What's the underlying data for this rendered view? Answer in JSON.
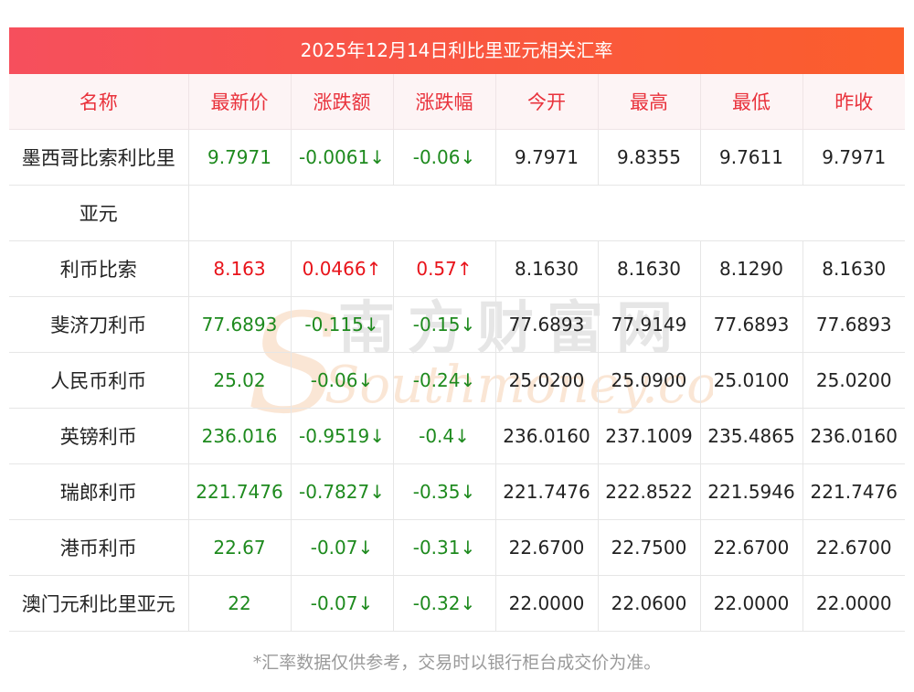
{
  "title": "2025年12月14日利比里亚元相关汇率",
  "headers": [
    "名称",
    "最新价",
    "涨跌额",
    "涨跌幅",
    "今开",
    "最高",
    "最低",
    "昨收"
  ],
  "rows": [
    {
      "name": "墨西哥比索利比里",
      "name_cont": "亚元",
      "latest": "9.7971",
      "change": "-0.0061↓",
      "pct": "-0.06↓",
      "open": "9.7971",
      "high": "9.8355",
      "low": "9.7611",
      "prev": "9.7971",
      "dir": "down"
    },
    {
      "name": "利币比索",
      "latest": "8.163",
      "change": "0.0466↑",
      "pct": "0.57↑",
      "open": "8.1630",
      "high": "8.1630",
      "low": "8.1290",
      "prev": "8.1630",
      "dir": "up"
    },
    {
      "name": "斐济刀利币",
      "latest": "77.6893",
      "change": "-0.115↓",
      "pct": "-0.15↓",
      "open": "77.6893",
      "high": "77.9149",
      "low": "77.6893",
      "prev": "77.6893",
      "dir": "down"
    },
    {
      "name": "人民币利币",
      "latest": "25.02",
      "change": "-0.06↓",
      "pct": "-0.24↓",
      "open": "25.0200",
      "high": "25.0900",
      "low": "25.0100",
      "prev": "25.0200",
      "dir": "down"
    },
    {
      "name": "英镑利币",
      "latest": "236.016",
      "change": "-0.9519↓",
      "pct": "-0.4↓",
      "open": "236.0160",
      "high": "237.1009",
      "low": "235.4865",
      "prev": "236.0160",
      "dir": "down"
    },
    {
      "name": "瑞郎利币",
      "latest": "221.7476",
      "change": "-0.7827↓",
      "pct": "-0.35↓",
      "open": "221.7476",
      "high": "222.8522",
      "low": "221.5946",
      "prev": "221.7476",
      "dir": "down"
    },
    {
      "name": "港币利币",
      "latest": "22.67",
      "change": "-0.07↓",
      "pct": "-0.31↓",
      "open": "22.6700",
      "high": "22.7500",
      "low": "22.6700",
      "prev": "22.6700",
      "dir": "down"
    },
    {
      "name": "澳门元利比里亚元",
      "latest": "22",
      "change": "-0.07↓",
      "pct": "-0.32↓",
      "open": "22.0000",
      "high": "22.0600",
      "low": "22.0000",
      "prev": "22.0000",
      "dir": "down"
    }
  ],
  "watermark": {
    "cn": "南方财富网",
    "en": "Southmoney.com",
    "color": "#f2b98a"
  },
  "footnote": "*汇率数据仅供参考，交易时以银行柜台成交价为准。"
}
